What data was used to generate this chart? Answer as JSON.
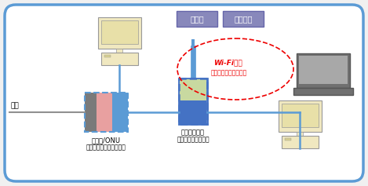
{
  "bg_color": "#f0f0f0",
  "border_color": "#5b9bd5",
  "modem_gray": "#7a7a7a",
  "modem_pink": "#e8a0a0",
  "modem_blue": "#5b9bd5",
  "router_blue": "#4472c4",
  "router_green": "#c8d9a0",
  "cable_color": "#5b9bd5",
  "wire_color": "#909090",
  "pc_body": "#f0e8c0",
  "pc_screen_inner": "#e8e0a8",
  "laptop_dark": "#707070",
  "laptop_screen": "#a8a8a8",
  "smartphone_box": "#8888bb",
  "game_box": "#8888bb",
  "dashed_red": "#ee0000",
  "text_color": "#000000",
  "label_modem": "モデム/ONU",
  "label_modem2": "（ルーター・ハブ内蔵）",
  "label_router": "無線ルーター",
  "label_router2": "（ブリッジモード）",
  "label_kaisen": "回線",
  "label_smartphone": "スマホ",
  "label_game": "ゲーム機",
  "label_wifi": "Wi-Fi電波",
  "label_wifi2": "（複数台同時接続可）",
  "ONU_text_color": "#cc0000"
}
